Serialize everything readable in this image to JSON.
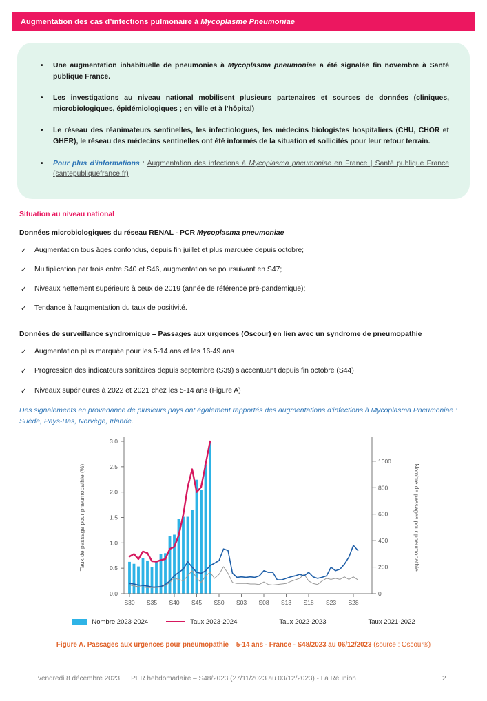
{
  "header": {
    "title_segments": [
      {
        "t": "Augmentation des cas d’infections pulmonaire à ",
        "s": "b"
      },
      {
        "t": "Mycoplasme Pneumoniae",
        "s": "bi"
      }
    ]
  },
  "summary_box": {
    "items": [
      {
        "segments": [
          {
            "t": "Une augmentation inhabituelle de pneumonies à ",
            "s": "b"
          },
          {
            "t": "Mycoplasma pneumoniae",
            "s": "bi"
          },
          {
            "t": " a été signalée fin novembre à Santé publique France.",
            "s": "b"
          }
        ]
      },
      {
        "segments": [
          {
            "t": "Les investigations au niveau national mobilisent plusieurs partenaires et sources de données (cliniques, microbiologiques, épidémiologiques ; en ville et à l’hôpital)",
            "s": "b"
          }
        ]
      },
      {
        "segments": [
          {
            "t": "Le réseau des réanimateurs sentinelles, les infectiologues, les médecins biologistes hospitaliers (CHU, CHOR et GHER), le réseau des médecins sentinelles ont été informés de la situation et sollicités pour leur retour terrain.",
            "s": "b"
          }
        ]
      },
      {
        "segments": [
          {
            "t": "Pour plus d’informations",
            "s": "blue-bi"
          },
          {
            "t": " : ",
            "s": ""
          },
          {
            "t": "Augmentation des infections à ",
            "s": "link"
          },
          {
            "t": "Mycoplasma pneumoniae",
            "s": "link-i"
          },
          {
            "t": " en France | Santé publique France (santepubliquefrance.fr)",
            "s": "link"
          }
        ]
      }
    ]
  },
  "national_section": {
    "heading": "Situation au niveau national",
    "micro_heading_segments": [
      {
        "t": "Données microbiologiques du réseau RENAL  - PCR ",
        "s": "b"
      },
      {
        "t": "Mycoplasma pneumoniae",
        "s": "bi"
      }
    ],
    "micro_checks": [
      "Augmentation tous âges confondus, depuis fin juillet et plus marquée depuis octobre;",
      "Multiplication par trois entre S40 et S46, augmentation se poursuivant en S47;",
      "Niveaux nettement supérieurs à ceux de 2019 (année de référence pré-pandémique);",
      "Tendance à l’augmentation du taux de positivité."
    ],
    "syndromic_heading": "Données de surveillance syndromique – Passages aux urgences (Oscour) en lien avec un syndrome de pneumopathie",
    "syndromic_checks": [
      "Augmentation plus marquée pour les  5-14 ans et les 16-49 ans",
      "Progression des indicateurs sanitaires depuis septembre (S39) s’accentuant depuis fin octobre (S44)",
      "Niveaux supérieures à 2022 et 2021 chez les 5-14 ans (Figure A)"
    ],
    "international_note": "Des signalements en provenance de plusieurs pays ont également rapportés des augmentations d’infections à Mycoplasma Pneumoniae : Suède, Pays-Bas, Norvège, Irlande."
  },
  "chart_data": {
    "type": "bar",
    "title": "",
    "xlabel": "",
    "ylabel_left": "Taux de passage pour pneumopathie (%)",
    "ylabel_right": "Nombre de passages pour pneumopathie",
    "ylim_left": [
      0,
      3.0
    ],
    "yticks_left": [
      0.0,
      0.5,
      1.0,
      1.5,
      2.0,
      2.5,
      3.0
    ],
    "ylim_right": [
      0,
      1150
    ],
    "yticks_right": [
      0,
      200,
      400,
      600,
      800,
      1000
    ],
    "x_weeks": [
      "S30",
      "S31",
      "S32",
      "S33",
      "S34",
      "S35",
      "S36",
      "S37",
      "S38",
      "S39",
      "S40",
      "S41",
      "S42",
      "S43",
      "S44",
      "S45",
      "S46",
      "S47",
      "S48",
      "S49",
      "S50",
      "S51",
      "S52",
      "S01",
      "S02",
      "S03",
      "S04",
      "S05",
      "S06",
      "S07",
      "S08",
      "S09",
      "S10",
      "S11",
      "S12",
      "S13",
      "S14",
      "S15",
      "S16",
      "S17",
      "S18",
      "S19",
      "S20",
      "S21",
      "S22",
      "S23",
      "S24",
      "S25",
      "S26",
      "S27",
      "S28",
      "S29"
    ],
    "x_tick_labels": [
      "S30",
      "S35",
      "S40",
      "S45",
      "S50",
      "S03",
      "S08",
      "S13",
      "S18",
      "S23",
      "S28"
    ],
    "x_tick_indices": [
      0,
      5,
      10,
      15,
      20,
      25,
      30,
      35,
      40,
      45,
      50
    ],
    "grid": false,
    "legend_position": "bottom",
    "series": [
      {
        "name": "Nombre 2023-2024",
        "type": "bar",
        "axis": "right",
        "color": "#2eb3e6",
        "stroke_width": 0,
        "values": [
          240,
          225,
          205,
          270,
          250,
          200,
          240,
          300,
          305,
          435,
          445,
          565,
          580,
          580,
          630,
          860,
          785,
          975,
          1150
        ]
      },
      {
        "name": "Taux 2023-2024",
        "type": "line",
        "axis": "left",
        "color": "#d6185e",
        "stroke_width": 2.4,
        "values": [
          0.73,
          0.78,
          0.68,
          0.83,
          0.8,
          0.64,
          0.63,
          0.66,
          0.68,
          0.88,
          0.92,
          1.15,
          1.55,
          2.1,
          2.45,
          2.0,
          2.1,
          2.55,
          3.0
        ]
      },
      {
        "name": "Taux 2022-2023",
        "type": "line",
        "axis": "left",
        "color": "#1f5fa8",
        "stroke_width": 1.6,
        "values": [
          0.2,
          0.19,
          0.17,
          0.16,
          0.15,
          0.13,
          0.13,
          0.14,
          0.18,
          0.25,
          0.35,
          0.42,
          0.48,
          0.63,
          0.52,
          0.42,
          0.4,
          0.45,
          0.55,
          0.6,
          0.65,
          0.88,
          0.85,
          0.4,
          0.32,
          0.33,
          0.32,
          0.33,
          0.32,
          0.35,
          0.45,
          0.42,
          0.42,
          0.27,
          0.27,
          0.3,
          0.33,
          0.35,
          0.38,
          0.35,
          0.42,
          0.33,
          0.3,
          0.32,
          0.35,
          0.52,
          0.45,
          0.48,
          0.58,
          0.72,
          0.95,
          0.85
        ]
      },
      {
        "name": "Taux 2021-2022",
        "type": "line",
        "axis": "left",
        "color": "#999999",
        "stroke_width": 1,
        "values": [
          0.17,
          0.15,
          0.14,
          0.13,
          0.12,
          0.12,
          0.12,
          0.13,
          0.16,
          0.22,
          0.3,
          0.28,
          0.25,
          0.35,
          0.45,
          0.3,
          0.22,
          0.35,
          0.42,
          0.3,
          0.38,
          0.53,
          0.4,
          0.22,
          0.2,
          0.2,
          0.2,
          0.19,
          0.19,
          0.18,
          0.23,
          0.18,
          0.17,
          0.18,
          0.19,
          0.2,
          0.24,
          0.27,
          0.3,
          0.38,
          0.25,
          0.2,
          0.18,
          0.25,
          0.3,
          0.28,
          0.3,
          0.28,
          0.33,
          0.28,
          0.33,
          0.27
        ]
      }
    ]
  },
  "figure_caption": {
    "main": "Figure A. Passages aux urgences pour pneumopathie – 5-14 ans - France - S48/2023 au 06/12/2023 ",
    "source": "(source : Oscour®)"
  },
  "footer": {
    "date": "vendredi 8 décembre 2023",
    "center": "PER hebdomadaire – S48/2023 (27/11/2023 au 03/12/2023) - La Réunion",
    "page": "2"
  }
}
